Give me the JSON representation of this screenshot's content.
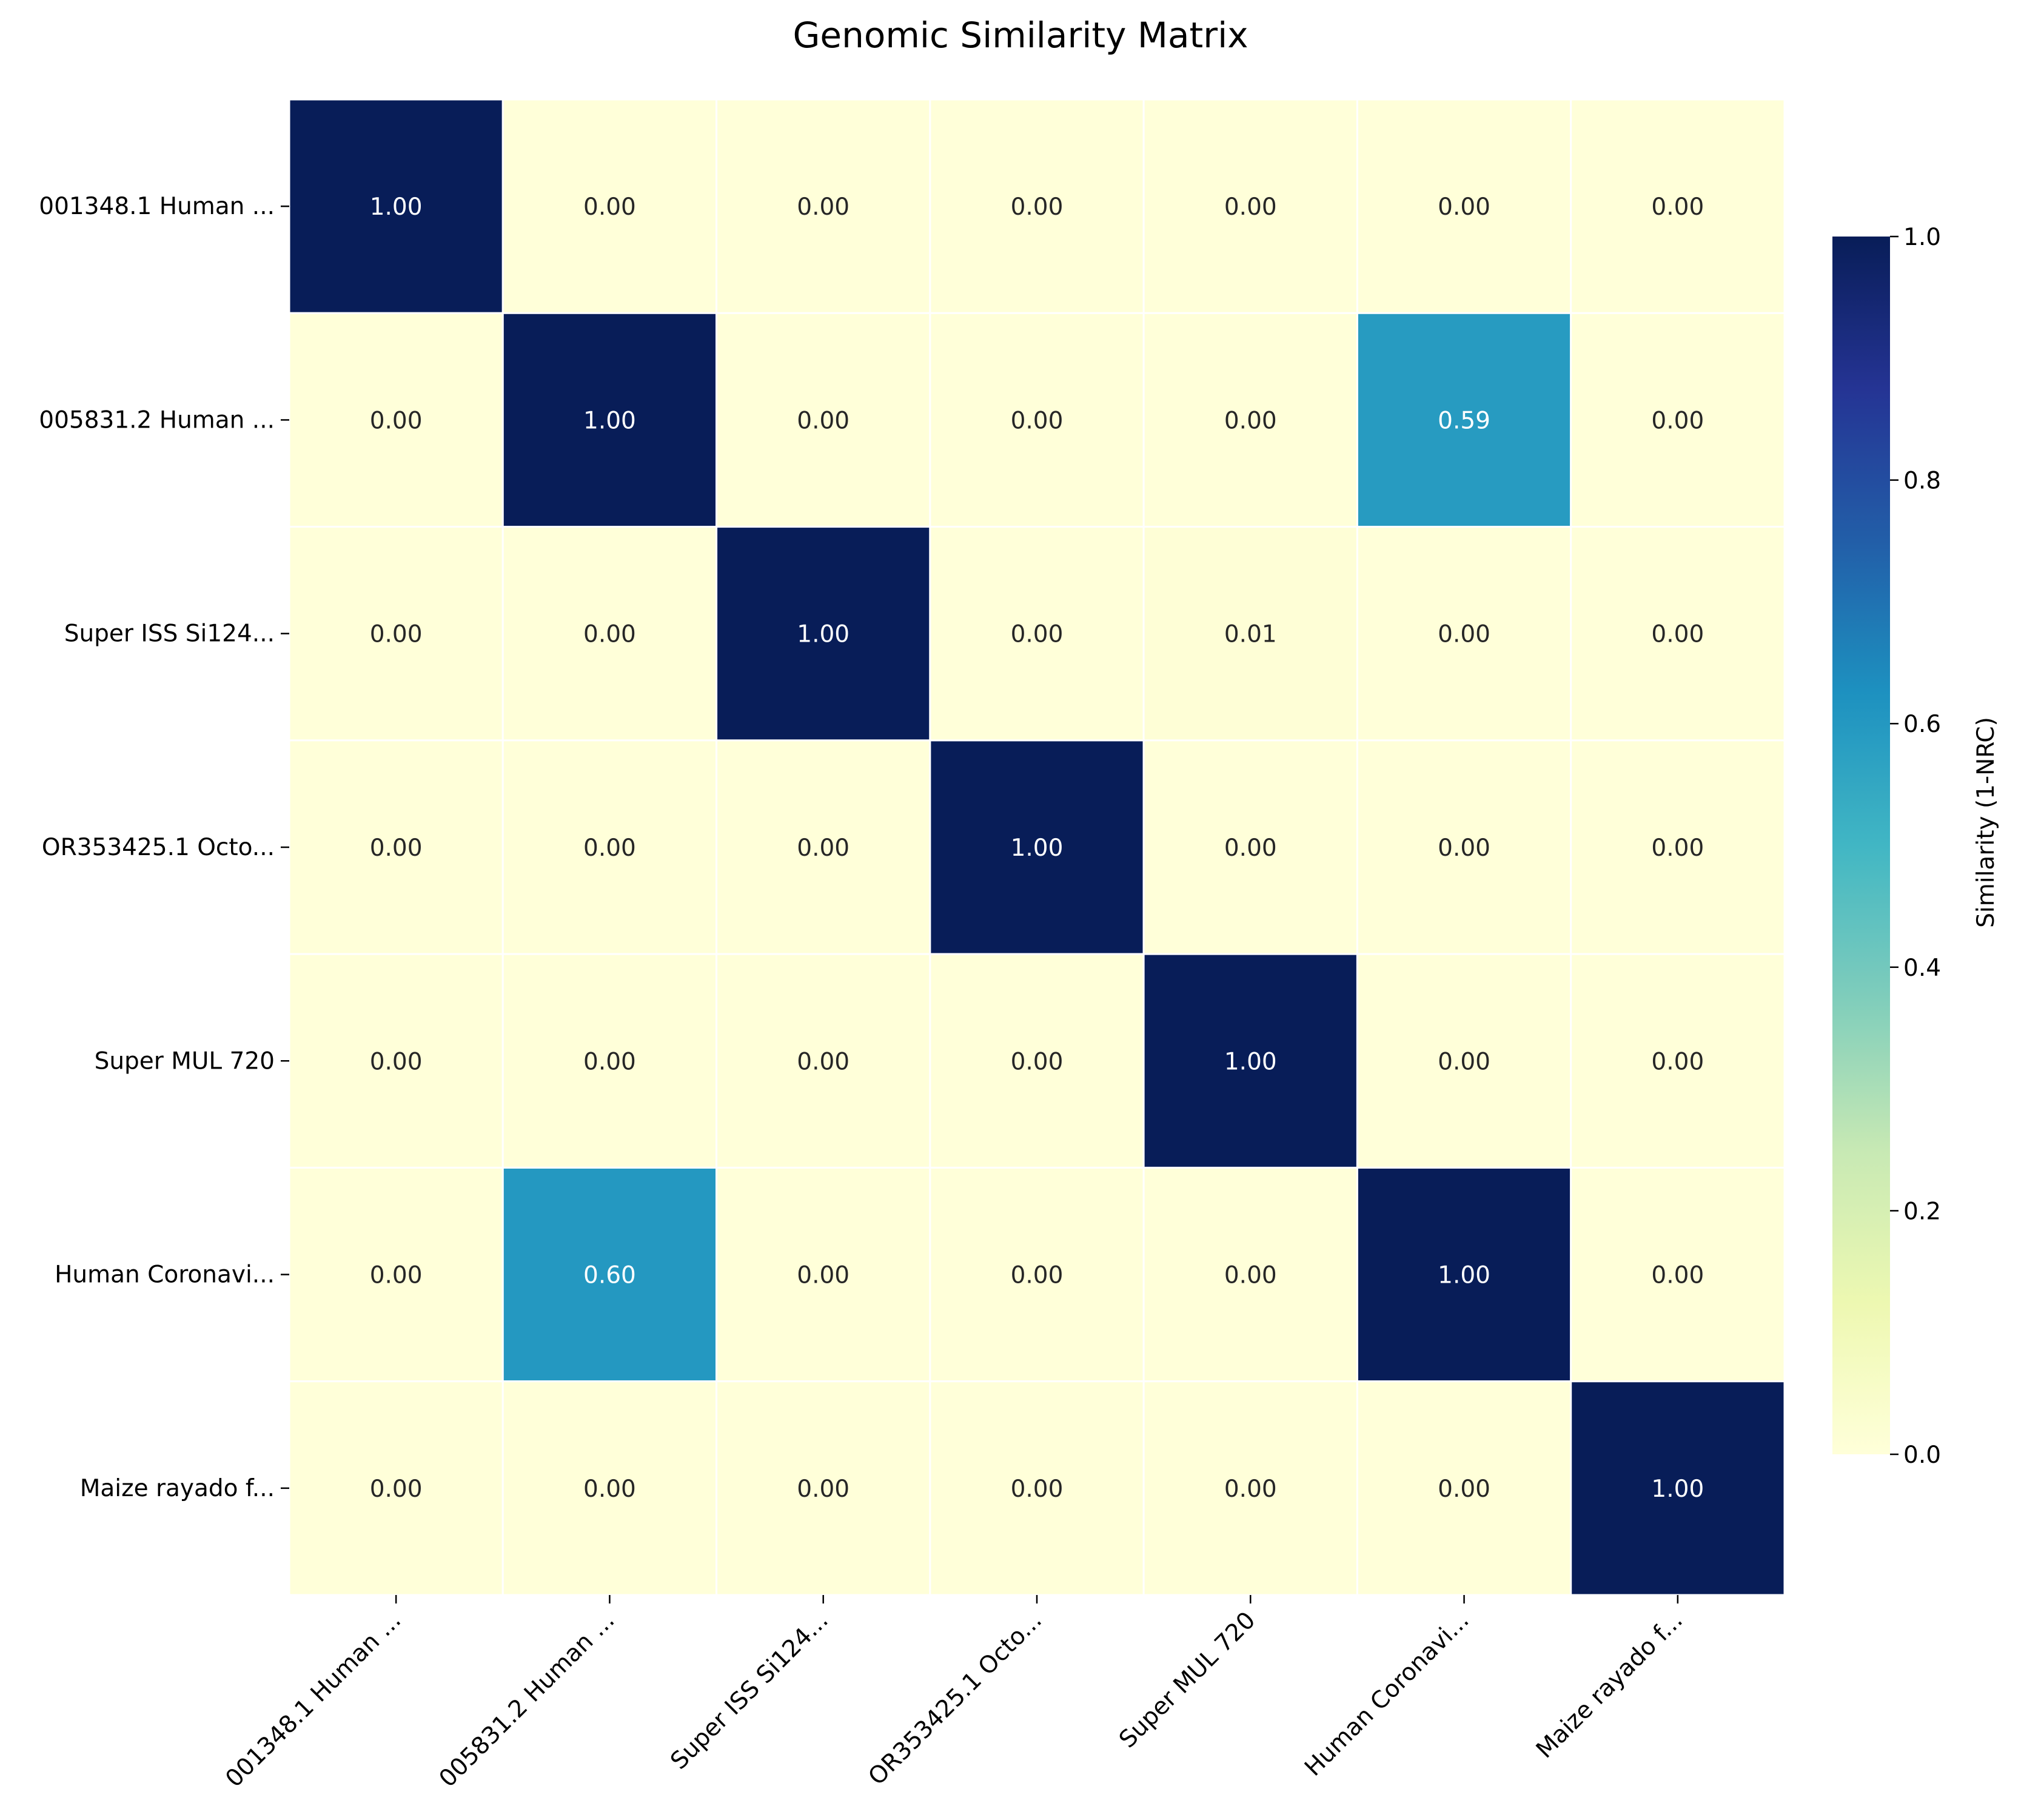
{
  "chart_data": {
    "type": "heatmap",
    "title": "Genomic Similarity Matrix",
    "row_labels": [
      "001348.1 Human ...",
      "005831.2 Human ...",
      "Super ISS Si124...",
      "OR353425.1 Octo...",
      "Super MUL 720",
      "Human Coronavi...",
      "Maize rayado f..."
    ],
    "col_labels": [
      "001348.1 Human ...",
      "005831.2 Human ...",
      "Super ISS Si124...",
      "OR353425.1 Octo...",
      "Super MUL 720",
      "Human Coronavi...",
      "Maize rayado f..."
    ],
    "values": [
      [
        1.0,
        0.0,
        0.0,
        0.0,
        0.0,
        0.0,
        0.0
      ],
      [
        0.0,
        1.0,
        0.0,
        0.0,
        0.0,
        0.59,
        0.0
      ],
      [
        0.0,
        0.0,
        1.0,
        0.0,
        0.01,
        0.0,
        0.0
      ],
      [
        0.0,
        0.0,
        0.0,
        1.0,
        0.0,
        0.0,
        0.0
      ],
      [
        0.0,
        0.0,
        0.0,
        0.0,
        1.0,
        0.0,
        0.0
      ],
      [
        0.0,
        0.6,
        0.0,
        0.0,
        0.0,
        1.0,
        0.0
      ],
      [
        0.0,
        0.0,
        0.0,
        0.0,
        0.0,
        0.0,
        1.0
      ]
    ],
    "value_format": "0.00",
    "colormap": "YlGnBu",
    "colormap_stops": [
      "#ffffd9",
      "#edf8b1",
      "#c7e9b4",
      "#7fcdbb",
      "#41b6c4",
      "#1d91c0",
      "#225ea8",
      "#253494",
      "#081d58"
    ],
    "vmin": 0.0,
    "vmax": 1.0,
    "colorbar": {
      "label": "Similarity (1-NRC)",
      "ticks": [
        "0.0",
        "0.2",
        "0.4",
        "0.6",
        "0.8",
        "1.0"
      ],
      "tick_values": [
        0.0,
        0.2,
        0.4,
        0.6,
        0.8,
        1.0
      ],
      "position": "right"
    },
    "grid_line_color": "#ffffff",
    "xlabel": "",
    "ylabel": ""
  }
}
